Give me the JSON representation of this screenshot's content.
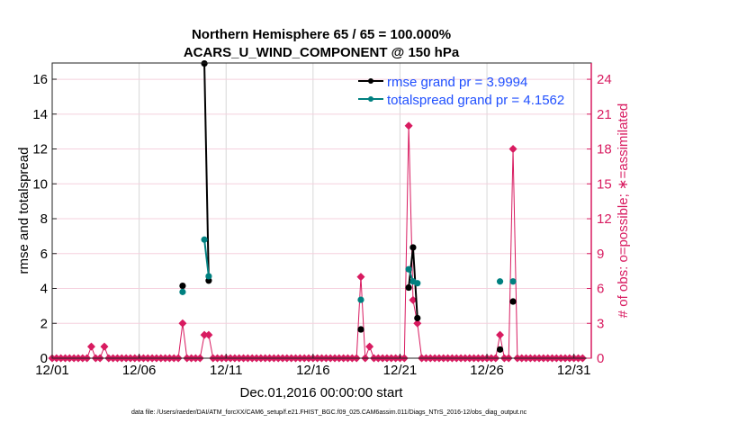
{
  "chart_data": {
    "type": "line",
    "title": [
      "Northern Hemisphere 65 / 65 = 100.000%",
      "ACARS_U_WIND_COMPONENT @ 150 hPa"
    ],
    "xlabel": "Dec.01,2016 00:00:00 start",
    "ylabel_left": "rmse and totalspread",
    "ylabel_right": "# of obs: o=possible; ∗=assimilated",
    "xlim_days": [
      1,
      32
    ],
    "ylim_left": [
      0,
      16.93
    ],
    "ylim_right": [
      0,
      25.4
    ],
    "x_ticks": [
      {
        "day": 1,
        "label": "12/01"
      },
      {
        "day": 6,
        "label": "12/06"
      },
      {
        "day": 11,
        "label": "12/11"
      },
      {
        "day": 16,
        "label": "12/16"
      },
      {
        "day": 21,
        "label": "12/21"
      },
      {
        "day": 26,
        "label": "12/26"
      },
      {
        "day": 31,
        "label": "12/31"
      }
    ],
    "y_ticks_left": [
      "0",
      "2",
      "4",
      "6",
      "8",
      "10",
      "12",
      "14",
      "16"
    ],
    "y_ticks_right": [
      "0",
      "3",
      "6",
      "9",
      "12",
      "15",
      "18",
      "21",
      "24"
    ],
    "legend_position": "top-right",
    "series": [
      {
        "name": "rmse grand pr = 3.9994",
        "color": "#000000",
        "points": [
          [
            8.5,
            4.15
          ],
          [
            9.75,
            16.9
          ],
          [
            10.0,
            4.45
          ],
          [
            18.75,
            1.65
          ],
          [
            21.5,
            4.05
          ],
          [
            21.75,
            6.35
          ],
          [
            22.0,
            2.3
          ],
          [
            26.75,
            0.5
          ],
          [
            27.5,
            3.25
          ]
        ]
      },
      {
        "name": "totalspread grand pr = 4.1562",
        "color": "#008080",
        "points": [
          [
            8.5,
            3.8
          ],
          [
            9.75,
            6.8
          ],
          [
            10.0,
            4.7
          ],
          [
            18.75,
            3.35
          ],
          [
            21.5,
            5.1
          ],
          [
            21.75,
            4.4
          ],
          [
            22.0,
            4.3
          ],
          [
            26.75,
            4.4
          ],
          [
            27.5,
            4.4
          ]
        ]
      }
    ],
    "obs_count": {
      "color": "#d81b60",
      "start_day": 1,
      "step_days": 0.25,
      "n": 123,
      "default": 0,
      "nonzero": [
        [
          3.25,
          1
        ],
        [
          4.0,
          1
        ],
        [
          8.5,
          3
        ],
        [
          9.75,
          2
        ],
        [
          10.0,
          2
        ],
        [
          18.75,
          7
        ],
        [
          19.25,
          1
        ],
        [
          21.5,
          20
        ],
        [
          21.75,
          5
        ],
        [
          22.0,
          3
        ],
        [
          26.75,
          2
        ],
        [
          27.5,
          18
        ]
      ]
    }
  },
  "footer": {
    "data_file": "data file: /Users/raeder/DAI/ATM_forcXX/CAM6_setup/f.e21.FHIST_BGC.f09_025.CAM6assim.011/Diags_NTrS_2016-12/obs_diag_output.nc"
  }
}
